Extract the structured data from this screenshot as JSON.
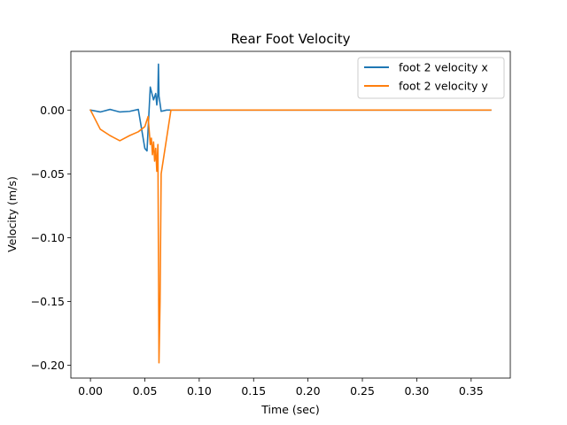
{
  "chart_data": {
    "type": "line",
    "title": "Rear Foot Velocity",
    "xlabel": "Time (sec)",
    "ylabel": "Velocity (m/s)",
    "xlim": [
      -0.018,
      0.386
    ],
    "ylim": [
      -0.21,
      0.046
    ],
    "xticks": [
      0.0,
      0.05,
      0.1,
      0.15,
      0.2,
      0.25,
      0.3,
      0.35
    ],
    "xtick_labels": [
      "0.00",
      "0.05",
      "0.10",
      "0.15",
      "0.20",
      "0.25",
      "0.30",
      "0.35"
    ],
    "yticks": [
      0.0,
      -0.05,
      -0.1,
      -0.15,
      -0.2
    ],
    "ytick_labels": [
      "0.00",
      "−0.05",
      "−0.10",
      "−0.15",
      "−0.20"
    ],
    "grid": false,
    "legend_position": "top-right",
    "series": [
      {
        "name": "foot 2 velocity x",
        "color": "#1f77b4",
        "x": [
          0.0,
          0.009,
          0.018,
          0.027,
          0.036,
          0.044,
          0.05,
          0.052,
          0.055,
          0.058,
          0.06,
          0.061,
          0.062,
          0.0625,
          0.063,
          0.065,
          0.07,
          0.075,
          0.368
        ],
        "y": [
          0.0,
          -0.0015,
          0.0005,
          -0.0015,
          -0.001,
          0.0005,
          -0.03,
          -0.032,
          0.018,
          0.008,
          0.013,
          0.004,
          0.013,
          0.036,
          0.011,
          -0.001,
          0.0,
          0.0,
          0.0
        ]
      },
      {
        "name": "foot 2 velocity y",
        "color": "#ff7f0e",
        "x": [
          0.0,
          0.009,
          0.018,
          0.027,
          0.036,
          0.044,
          0.05,
          0.053,
          0.055,
          0.056,
          0.057,
          0.058,
          0.059,
          0.06,
          0.061,
          0.062,
          0.063,
          0.064,
          0.065,
          0.074,
          0.368
        ],
        "y": [
          0.0,
          -0.015,
          -0.02,
          -0.024,
          -0.02,
          -0.017,
          -0.013,
          -0.005,
          -0.027,
          -0.022,
          -0.035,
          -0.025,
          -0.04,
          -0.03,
          -0.048,
          -0.027,
          -0.198,
          -0.15,
          -0.05,
          0.0,
          0.0
        ]
      }
    ]
  }
}
